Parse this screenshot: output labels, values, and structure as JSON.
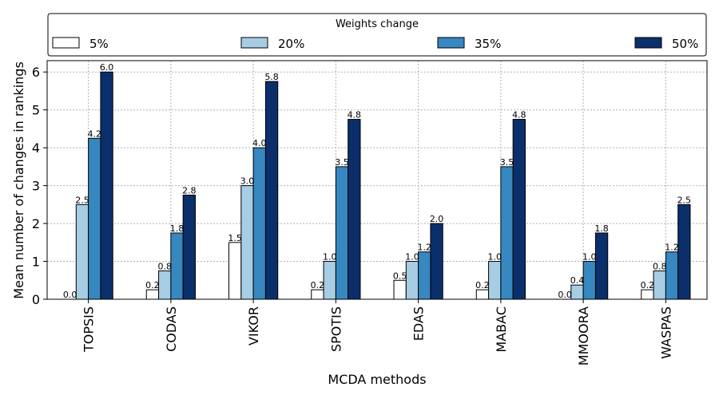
{
  "chart_data": {
    "type": "bar",
    "categories": [
      "TOPSIS",
      "CODAS",
      "VIKOR",
      "SPOTIS",
      "EDAS",
      "MABAC",
      "MMOORA",
      "WASPAS"
    ],
    "series": [
      {
        "name": "5%",
        "color": "#ffffff",
        "values": [
          0.0,
          0.25,
          1.5,
          0.25,
          0.5,
          0.25,
          0.0,
          0.25
        ],
        "labels": [
          "0.0",
          "0.2",
          "1.5",
          "0.2",
          "0.5",
          "0.2",
          "0.0",
          "0.2"
        ]
      },
      {
        "name": "20%",
        "color": "#a6cde3",
        "values": [
          2.5,
          0.75,
          3.0,
          1.0,
          1.0,
          1.0,
          0.375,
          0.75
        ],
        "labels": [
          "2.5",
          "0.8",
          "3.0",
          "1.0",
          "1.0",
          "1.0",
          "0.4",
          "0.8"
        ]
      },
      {
        "name": "35%",
        "color": "#3787c0",
        "values": [
          4.25,
          1.75,
          4.0,
          3.5,
          1.25,
          3.5,
          1.0,
          1.25
        ],
        "labels": [
          "4.2",
          "1.8",
          "4.0",
          "3.5",
          "1.2",
          "3.5",
          "1.0",
          "1.2"
        ]
      },
      {
        "name": "50%",
        "color": "#0b2f6b",
        "values": [
          6.0,
          2.75,
          5.75,
          4.75,
          2.0,
          4.75,
          1.75,
          2.5
        ],
        "labels": [
          "6.0",
          "2.8",
          "5.8",
          "4.8",
          "2.0",
          "4.8",
          "1.8",
          "2.5"
        ]
      }
    ],
    "xlabel": "MCDA methods",
    "ylabel": "Mean number of changes in rankings",
    "ylim": [
      0,
      6.3
    ],
    "yticks": [
      "0",
      "1",
      "2",
      "3",
      "4",
      "5",
      "6"
    ],
    "grid": true,
    "legend": {
      "title": "Weights change",
      "placement": "top"
    }
  }
}
